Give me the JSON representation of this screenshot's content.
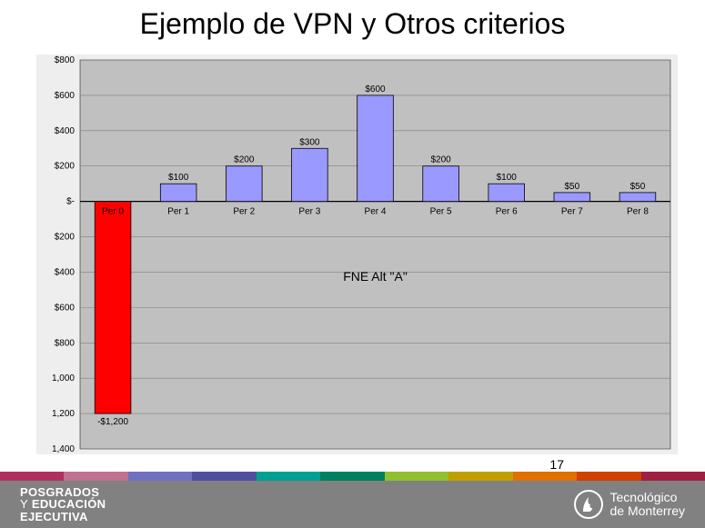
{
  "slide": {
    "title": "Ejemplo  de VPN y Otros criterios",
    "page_number": "17"
  },
  "chart": {
    "type": "bar",
    "series_name": "FNE Alt \"A\"",
    "series_name_fontsize": 14,
    "categories": [
      "Per 0",
      "Per 1",
      "Per 2",
      "Per 3",
      "Per 4",
      "Per 5",
      "Per 6",
      "Per 7",
      "Per 8"
    ],
    "values": [
      -1200,
      100,
      200,
      300,
      600,
      200,
      100,
      50,
      50
    ],
    "value_labels": [
      "-$1,200",
      "$100",
      "$200",
      "$300",
      "$600",
      "$200",
      "$100",
      "$50",
      "$50"
    ],
    "bar_colors": [
      "#ff0000",
      "#9999ff",
      "#9999ff",
      "#9999ff",
      "#9999ff",
      "#9999ff",
      "#9999ff",
      "#9999ff",
      "#9999ff"
    ],
    "bar_border_color": "#000000",
    "bar_width": 0.55,
    "y_ticks": [
      800,
      600,
      400,
      200,
      0,
      -200,
      -400,
      -600,
      -800,
      -1000,
      -1200,
      -1400
    ],
    "y_tick_labels": [
      "$800",
      "$600",
      "$400",
      "$200",
      "$-",
      "$200",
      "$400",
      "$600",
      "$800",
      "1,000",
      "1,200",
      "1,400"
    ],
    "ylim": [
      -1400,
      800
    ],
    "plot_background_color": "#c0c0c0",
    "outer_background_color": "#eeeeee",
    "grid_color": "#808080",
    "axis_color": "#000000",
    "tick_label_fontsize": 10,
    "tick_label_color": "#000000",
    "value_label_fontsize": 10,
    "value_label_color": "#000000",
    "category_label_fontsize": 10
  },
  "footer": {
    "stripe_colors": [
      "#b03060",
      "#c07090",
      "#7070c0",
      "#5050a0",
      "#00a090",
      "#008060",
      "#90c030",
      "#c0a000",
      "#e07000",
      "#d04000",
      "#a02040"
    ],
    "band_color": "#818181",
    "left_line1": "POSGRADOS",
    "left_line2a": "Y",
    "left_line2b": " EDUCACIÓN",
    "left_line3": "EJECUTIVA",
    "right_line1": "Tecnológico",
    "right_line2": "de Monterrey"
  }
}
